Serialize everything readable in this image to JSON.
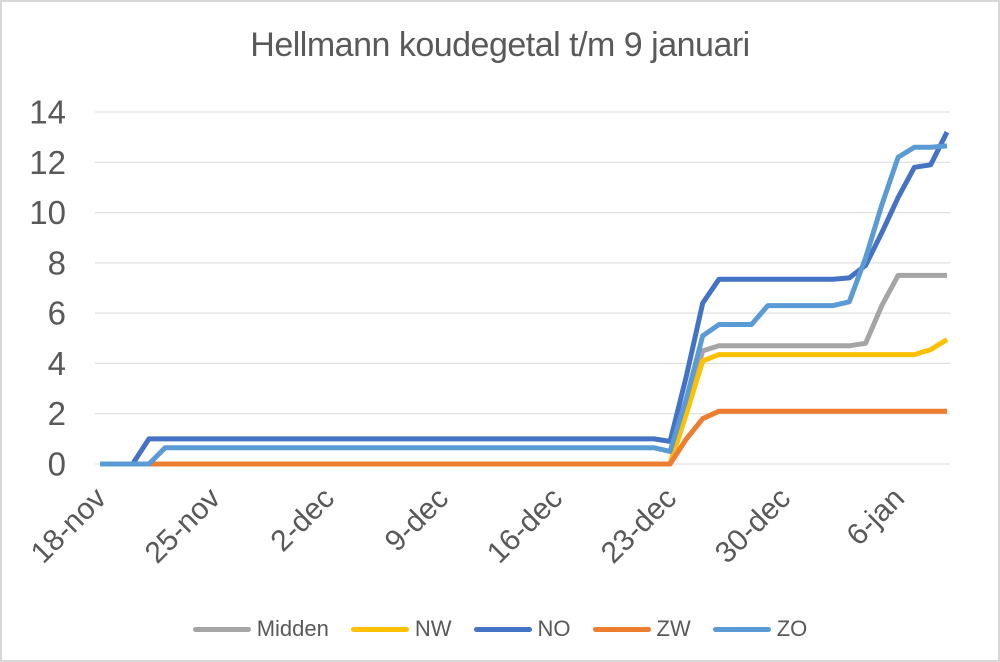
{
  "chart_data": {
    "type": "line",
    "title": "Hellmann koudegetal t/m 9 januari",
    "xlabel": "",
    "ylabel": "",
    "ylim": [
      0,
      14
    ],
    "y_ticks": [
      0,
      2,
      4,
      6,
      8,
      10,
      12,
      14
    ],
    "grid": "horizontal",
    "legend_position": "bottom",
    "x_start": "18-nov",
    "x_end": "9-jan",
    "days_count": 53,
    "x_tick_labels": [
      "18-nov",
      "25-nov",
      "2-dec",
      "9-dec",
      "16-dec",
      "23-dec",
      "30-dec",
      "6-jan"
    ],
    "x_tick_day_indices": [
      0,
      7,
      14,
      21,
      28,
      35,
      42,
      49
    ],
    "series": [
      {
        "name": "Midden",
        "color": "#A5A5A5",
        "values": [
          0,
          0,
          0,
          0,
          0,
          0,
          0,
          0,
          0,
          0,
          0,
          0,
          0,
          0,
          0,
          0,
          0,
          0,
          0,
          0,
          0,
          0,
          0,
          0,
          0,
          0,
          0,
          0,
          0,
          0,
          0,
          0,
          0,
          0,
          0,
          0,
          2.2,
          4.5,
          4.7,
          4.7,
          4.7,
          4.7,
          4.7,
          4.7,
          4.7,
          4.7,
          4.7,
          4.8,
          6.3,
          7.5,
          7.5,
          7.5,
          7.5
        ]
      },
      {
        "name": "NW",
        "color": "#FFC000",
        "values": [
          0,
          0,
          0,
          0,
          0,
          0,
          0,
          0,
          0,
          0,
          0,
          0,
          0,
          0,
          0,
          0,
          0,
          0,
          0,
          0,
          0,
          0,
          0,
          0,
          0,
          0,
          0,
          0,
          0,
          0,
          0,
          0,
          0,
          0,
          0,
          0,
          2.0,
          4.1,
          4.35,
          4.35,
          4.35,
          4.35,
          4.35,
          4.35,
          4.35,
          4.35,
          4.35,
          4.35,
          4.35,
          4.35,
          4.35,
          4.55,
          4.95
        ]
      },
      {
        "name": "NO",
        "color": "#4472C4",
        "values": [
          0,
          0,
          0,
          1,
          1,
          1,
          1,
          1,
          1,
          1,
          1,
          1,
          1,
          1,
          1,
          1,
          1,
          1,
          1,
          1,
          1,
          1,
          1,
          1,
          1,
          1,
          1,
          1,
          1,
          1,
          1,
          1,
          1,
          1,
          1,
          0.9,
          3.5,
          6.4,
          7.35,
          7.35,
          7.35,
          7.35,
          7.35,
          7.35,
          7.35,
          7.35,
          7.4,
          7.9,
          9.2,
          10.6,
          11.8,
          11.9,
          13.2
        ]
      },
      {
        "name": "ZW",
        "color": "#ED7D31",
        "values": [
          0,
          0,
          0,
          0,
          0,
          0,
          0,
          0,
          0,
          0,
          0,
          0,
          0,
          0,
          0,
          0,
          0,
          0,
          0,
          0,
          0,
          0,
          0,
          0,
          0,
          0,
          0,
          0,
          0,
          0,
          0,
          0,
          0,
          0,
          0,
          0,
          1.0,
          1.8,
          2.1,
          2.1,
          2.1,
          2.1,
          2.1,
          2.1,
          2.1,
          2.1,
          2.1,
          2.1,
          2.1,
          2.1,
          2.1,
          2.1,
          2.1
        ]
      },
      {
        "name": "ZO",
        "color": "#5B9BD5",
        "values": [
          0,
          0,
          0,
          0,
          0.65,
          0.65,
          0.65,
          0.65,
          0.65,
          0.65,
          0.65,
          0.65,
          0.65,
          0.65,
          0.65,
          0.65,
          0.65,
          0.65,
          0.65,
          0.65,
          0.65,
          0.65,
          0.65,
          0.65,
          0.65,
          0.65,
          0.65,
          0.65,
          0.65,
          0.65,
          0.65,
          0.65,
          0.65,
          0.65,
          0.65,
          0.5,
          2.6,
          5.1,
          5.55,
          5.55,
          5.55,
          6.3,
          6.3,
          6.3,
          6.3,
          6.3,
          6.45,
          8.2,
          10.3,
          12.2,
          12.6,
          12.6,
          12.65
        ]
      }
    ]
  },
  "colors": {
    "text": "#595959",
    "grid": "#D9D9D9",
    "background": "#FFFFFF",
    "border": "#D7D7D7"
  }
}
